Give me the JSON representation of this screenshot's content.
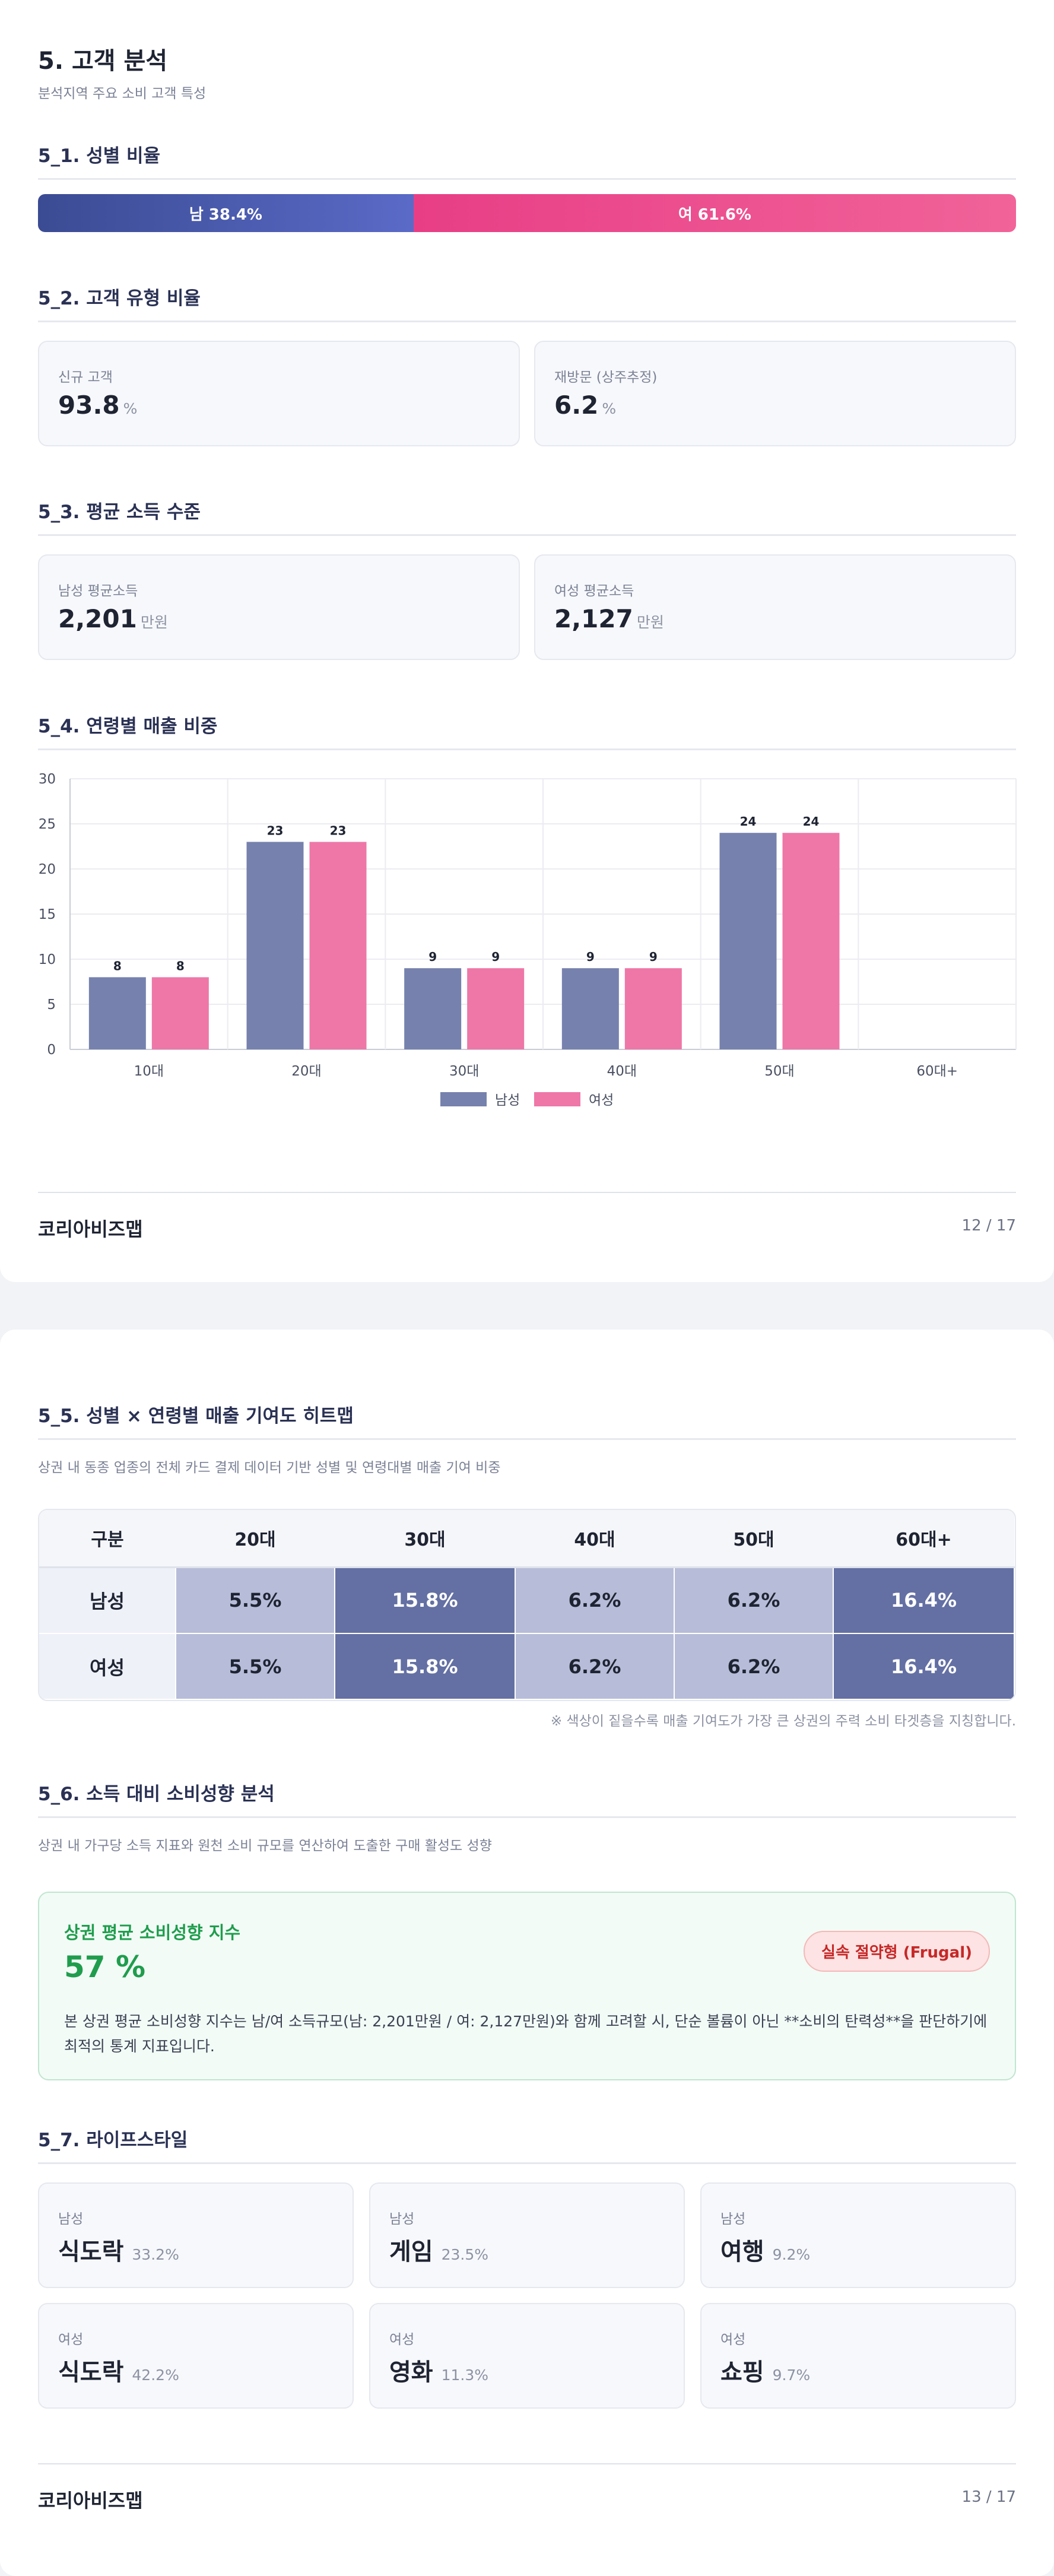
{
  "page1": {
    "title": "5. 고객 분석",
    "subtitle": "분석지역 주요 소비 고객 특성",
    "gender": {
      "heading": "5_1. 성별 비율",
      "male_label": "남 38.4%",
      "female_label": "여 61.6%",
      "male_pct": 38.4,
      "female_pct": 61.6,
      "male_color": "#3b4b93",
      "female_color": "#e83e86"
    },
    "customer_type": {
      "heading": "5_2. 고객 유형 비율",
      "cards": [
        {
          "label": "신규 고객",
          "value": "93.8",
          "unit": "%"
        },
        {
          "label": "재방문 (상주추정)",
          "value": "6.2",
          "unit": "%"
        }
      ]
    },
    "income": {
      "heading": "5_3. 평균 소득 수준",
      "cards": [
        {
          "label": "남성 평균소득",
          "value": "2,201",
          "unit": "만원"
        },
        {
          "label": "여성 평균소득",
          "value": "2,127",
          "unit": "만원"
        }
      ]
    },
    "age_sales": {
      "heading": "5_4. 연령별 매출 비중"
    },
    "footer": {
      "brand": "코리아비즈맵",
      "page": "12 / 17"
    }
  },
  "chart_data": {
    "type": "bar",
    "title": "",
    "xlabel": "",
    "ylabel": "",
    "categories": [
      "10대",
      "20대",
      "30대",
      "40대",
      "50대",
      "60대+"
    ],
    "series": [
      {
        "name": "남성",
        "values": [
          8,
          23,
          9,
          9,
          24,
          0
        ],
        "color": "#7681ad",
        "labels": [
          "8",
          "23",
          "9",
          "9",
          "24",
          ""
        ]
      },
      {
        "name": "여성",
        "values": [
          8,
          23,
          9,
          9,
          24,
          0
        ],
        "color": "#ee77a8",
        "labels": [
          "8",
          "23",
          "9",
          "9",
          "24",
          ""
        ]
      }
    ],
    "ylim": [
      0,
      30
    ],
    "yticks": [
      "0",
      "5",
      "10",
      "15",
      "20",
      "25",
      "30"
    ],
    "grid": true,
    "legend": "bottom-center"
  },
  "page2": {
    "heatmap": {
      "heading": "5_5. 성별 × 연령별 매출 기여도 히트맵",
      "description": "상권 내 동종 업종의 전체 카드 결제 데이터 기반 성별 및 연령대별 매출 기여 비중",
      "columns": [
        "구분",
        "20대",
        "30대",
        "40대",
        "50대",
        "60대+"
      ],
      "rows": [
        {
          "label": "남성",
          "cells": [
            "5.5%",
            "15.8%",
            "6.2%",
            "6.2%",
            "16.4%"
          ]
        },
        {
          "label": "여성",
          "cells": [
            "5.5%",
            "15.8%",
            "6.2%",
            "6.2%",
            "16.4%"
          ]
        }
      ],
      "note": "※ 색상이 짙을수록 매출 기여도가 가장 큰 상권의 주력 소비 타겟층을 지칭합니다."
    },
    "propensity": {
      "heading": "5_6. 소득 대비 소비성향 분석",
      "description": "상권 내 가구당 소득 지표와 원천 소비 규모를 연산하여 도출한 구매 활성도 성향",
      "box_title": "상권 평균 소비성향 지수",
      "value": "57 %",
      "badge": "실속 절약형 (Frugal)",
      "text": "본 상권 평균 소비성향 지수는 남/여 소득규모(남: 2,201만원 / 여: 2,127만원)와 함께 고려할 시, 단순 볼륨이 아닌 **소비의 탄력성**을 판단하기에 최적의 통계 지표입니다."
    },
    "lifestyle": {
      "heading": "5_7. 라이프스타일",
      "cards": [
        {
          "gender": "남성",
          "category": "식도락",
          "pct": "33.2%"
        },
        {
          "gender": "남성",
          "category": "게임",
          "pct": "23.5%"
        },
        {
          "gender": "남성",
          "category": "여행",
          "pct": "9.2%"
        },
        {
          "gender": "여성",
          "category": "식도락",
          "pct": "42.2%"
        },
        {
          "gender": "여성",
          "category": "영화",
          "pct": "11.3%"
        },
        {
          "gender": "여성",
          "category": "쇼핑",
          "pct": "9.7%"
        }
      ]
    },
    "footer": {
      "brand": "코리아비즈맵",
      "page": "13 / 17"
    }
  }
}
